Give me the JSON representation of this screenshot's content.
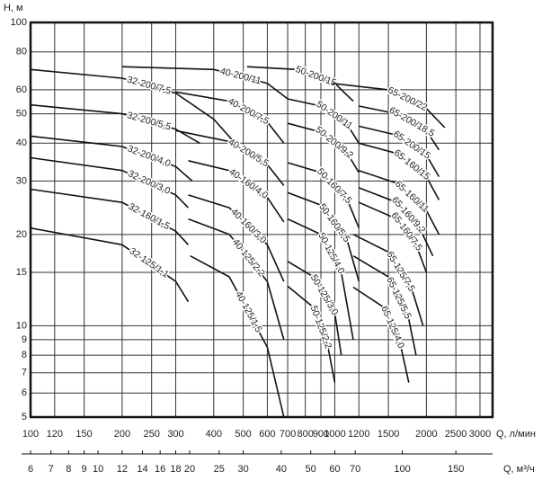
{
  "chart_data": {
    "type": "line",
    "ylabel": "H, м",
    "xlabel": "Q, л/мин",
    "x2label": "Q, м³/ч",
    "xscale": "log",
    "yscale": "log",
    "grid": true,
    "color": "#000000",
    "xlim": [
      100,
      3300
    ],
    "ylim": [
      5,
      100
    ],
    "x2lim": [
      6,
      198
    ],
    "xticks": [
      100,
      120,
      150,
      200,
      250,
      300,
      400,
      500,
      600,
      700,
      800,
      900,
      1000,
      1200,
      1500,
      2000,
      2500,
      3000
    ],
    "yticks": [
      5,
      6,
      7,
      8,
      9,
      10,
      15,
      20,
      30,
      40,
      50,
      60,
      80,
      100
    ],
    "x2ticks": [
      6,
      7,
      8,
      9,
      10,
      12,
      14,
      16,
      18,
      20,
      25,
      30,
      40,
      50,
      60,
      70,
      100,
      150
    ],
    "series": [
      {
        "name": "32-200/7,5",
        "x": [
          100,
          200,
          300,
          400,
          460
        ],
        "values": [
          70,
          65.5,
          58.5,
          48,
          41
        ]
      },
      {
        "name": "32-200/5,5",
        "x": [
          100,
          200,
          300,
          360
        ],
        "values": [
          53.5,
          50,
          44.5,
          40
        ]
      },
      {
        "name": "32-200/4,0",
        "x": [
          100,
          200,
          300,
          340
        ],
        "values": [
          42.2,
          39,
          33.5,
          30
        ]
      },
      {
        "name": "32-200/3,0",
        "x": [
          100,
          200,
          300,
          330
        ],
        "values": [
          35.8,
          32.5,
          27,
          24.5
        ]
      },
      {
        "name": "32-160/1,5",
        "x": [
          100,
          200,
          300,
          330
        ],
        "values": [
          28.2,
          25.5,
          20.5,
          18.5
        ]
      },
      {
        "name": "32-125/1,1",
        "x": [
          100,
          200,
          300,
          330
        ],
        "values": [
          21,
          18.5,
          14,
          12
        ]
      },
      {
        "name": "40-200/11",
        "x": [
          200,
          400,
          600,
          700
        ],
        "values": [
          71.5,
          70,
          63,
          56
        ]
      },
      {
        "name": "40-200/7,5",
        "x": [
          300,
          450,
          600,
          680
        ],
        "values": [
          59,
          55,
          47,
          40
        ]
      },
      {
        "name": "40-200/5,5",
        "x": [
          300,
          450,
          600,
          680
        ],
        "values": [
          44,
          40.5,
          34,
          29
        ]
      },
      {
        "name": "40-160/4,0",
        "x": [
          330,
          450,
          600,
          680
        ],
        "values": [
          35,
          32.5,
          26.5,
          22
        ]
      },
      {
        "name": "40-160/3,0",
        "x": [
          330,
          450,
          600,
          680
        ],
        "values": [
          27,
          24.5,
          18.5,
          14
        ]
      },
      {
        "name": "40-125/2,2",
        "x": [
          330,
          450,
          600,
          680
        ],
        "values": [
          22.5,
          20,
          14,
          9
        ]
      },
      {
        "name": "40-125/1,5",
        "x": [
          335,
          450,
          600,
          680
        ],
        "values": [
          17,
          14.5,
          8.5,
          5
        ]
      },
      {
        "name": "50-200/15",
        "x": [
          515,
          750,
          1000,
          1150
        ],
        "values": [
          71.5,
          70,
          63,
          55
        ]
      },
      {
        "name": "50-200/11",
        "x": [
          700,
          900,
          1100,
          1200
        ],
        "values": [
          56,
          53,
          46,
          40
        ]
      },
      {
        "name": "50-200/9,2",
        "x": [
          700,
          900,
          1100,
          1200
        ],
        "values": [
          46.5,
          43.5,
          37,
          32
        ]
      },
      {
        "name": "50-160/7,5",
        "x": [
          700,
          900,
          1100,
          1200
        ],
        "values": [
          34.5,
          32,
          26,
          21
        ]
      },
      {
        "name": "50-160/5,5",
        "x": [
          700,
          900,
          1100,
          1200
        ],
        "values": [
          27.5,
          25,
          19,
          14
        ]
      },
      {
        "name": "50-125/4,0",
        "x": [
          700,
          900,
          1050,
          1150
        ],
        "values": [
          22.5,
          20,
          15,
          9
        ]
      },
      {
        "name": "50-125/3,0",
        "x": [
          700,
          850,
          1000,
          1050
        ],
        "values": [
          16.3,
          14.5,
          11,
          8
        ]
      },
      {
        "name": "50-125/2,2",
        "x": [
          700,
          850,
          950,
          1000
        ],
        "values": [
          13.5,
          11.5,
          8.5,
          6.5
        ]
      },
      {
        "name": "65-200/22",
        "x": [
          980,
          1500,
          2000,
          2300
        ],
        "values": [
          63,
          60,
          52,
          45
        ]
      },
      {
        "name": "65-200/18,5",
        "x": [
          1200,
          1600,
          2000,
          2200
        ],
        "values": [
          53,
          50,
          44,
          38
        ]
      },
      {
        "name": "65-200/15",
        "x": [
          1200,
          1600,
          2000,
          2200
        ],
        "values": [
          45.5,
          42.5,
          36.5,
          31
        ]
      },
      {
        "name": "65-160/15",
        "x": [
          1200,
          1600,
          2000,
          2200
        ],
        "values": [
          40,
          37,
          31,
          26
        ]
      },
      {
        "name": "65-160/11",
        "x": [
          1200,
          1600,
          2000,
          2200
        ],
        "values": [
          32.5,
          29.5,
          24,
          20
        ]
      },
      {
        "name": "65-160/9,2",
        "x": [
          1200,
          1600,
          1900,
          2100
        ],
        "values": [
          28.5,
          25.5,
          21,
          17
        ]
      },
      {
        "name": "65-160/7,5",
        "x": [
          1200,
          1600,
          1850,
          2000
        ],
        "values": [
          25.5,
          22.5,
          18.5,
          15
        ]
      },
      {
        "name": "65-125/7,5",
        "x": [
          1150,
          1500,
          1800,
          1950
        ],
        "values": [
          20,
          17.5,
          13,
          10
        ]
      },
      {
        "name": "65-125/5,5",
        "x": [
          1150,
          1500,
          1750,
          1850
        ],
        "values": [
          17,
          14.5,
          10.5,
          8
        ]
      },
      {
        "name": "65-125/4,0",
        "x": [
          1150,
          1450,
          1650,
          1750
        ],
        "values": [
          13.4,
          11.5,
          8.5,
          6.5
        ]
      }
    ]
  }
}
